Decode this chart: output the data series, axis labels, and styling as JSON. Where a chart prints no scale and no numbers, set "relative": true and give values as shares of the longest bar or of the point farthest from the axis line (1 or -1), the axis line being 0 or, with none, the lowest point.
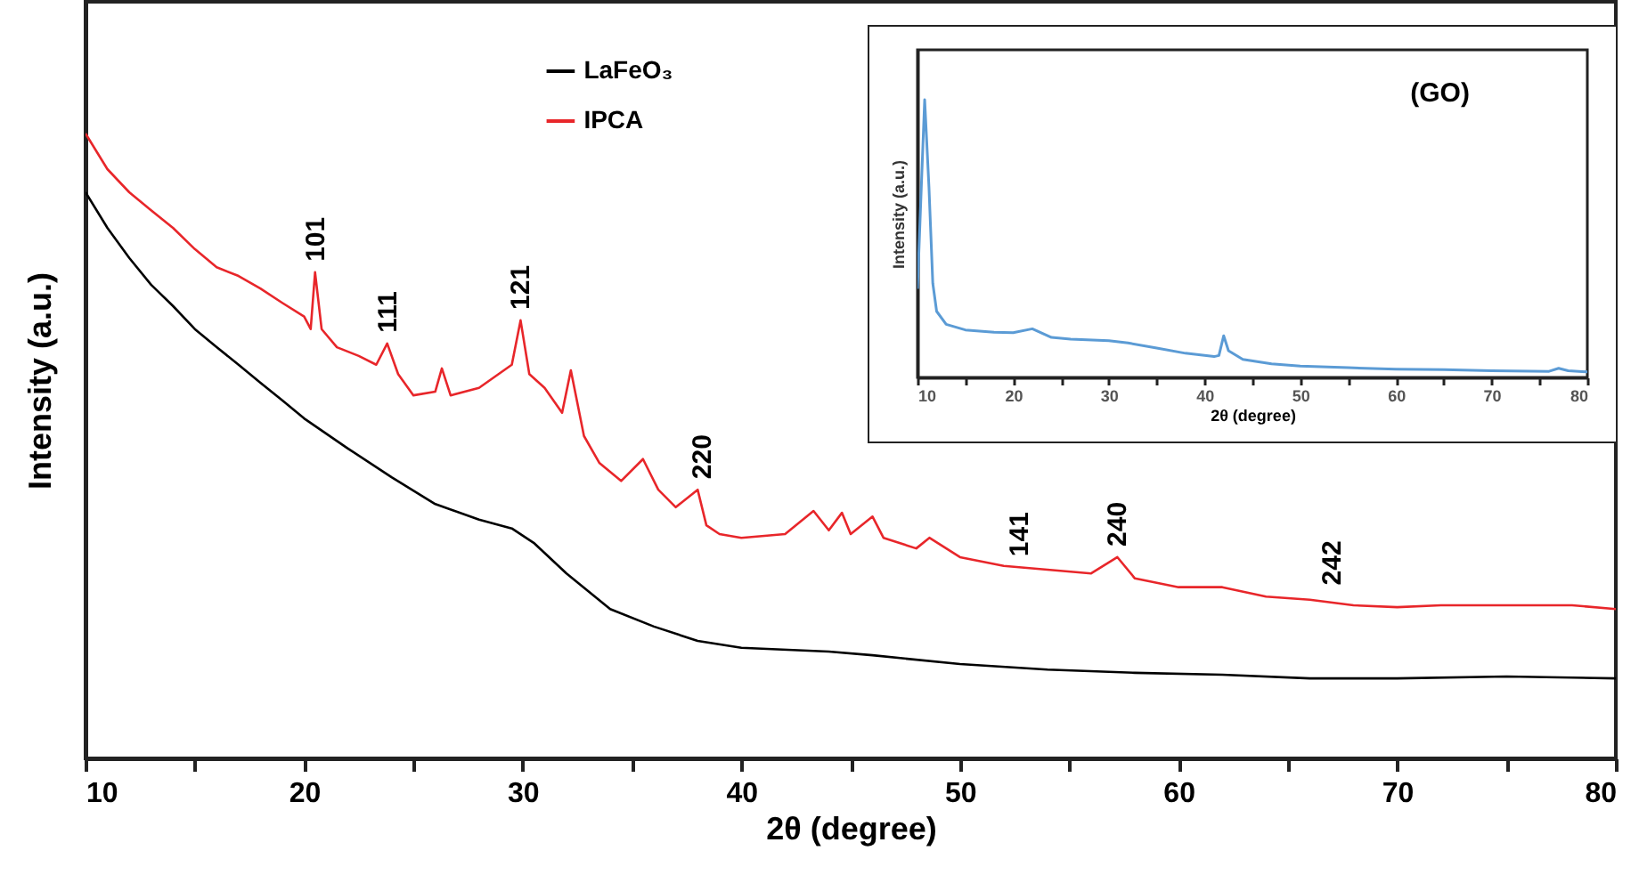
{
  "chart_data": [
    {
      "type": "line",
      "xlabel": "2θ (degree)",
      "ylabel": "Intensity (a.u.)",
      "relative": true,
      "legend": "top",
      "grid": false,
      "xlim": [
        10,
        80
      ],
      "xticks": [
        10,
        {
          "value": 15,
          "label": null
        },
        20,
        {
          "value": 25,
          "label": null
        },
        30,
        {
          "value": 35,
          "label": null
        },
        40,
        {
          "value": 45,
          "label": null
        },
        50,
        {
          "value": 55,
          "label": null
        },
        60,
        {
          "value": 65,
          "label": null
        },
        70,
        {
          "value": 75,
          "label": null
        },
        80
      ],
      "series": [
        {
          "name": "LaFeO₃",
          "color": "#000000",
          "x": [
            10,
            11,
            12,
            13,
            14,
            15,
            16,
            17,
            18,
            19,
            20,
            22,
            24,
            26,
            28,
            29.5,
            30.5,
            32,
            34,
            36,
            38,
            40,
            44,
            46,
            50,
            54,
            58,
            62,
            66,
            70,
            75,
            80
          ],
          "values": [
            0.906,
            0.849,
            0.801,
            0.758,
            0.724,
            0.687,
            0.658,
            0.63,
            0.601,
            0.573,
            0.544,
            0.496,
            0.45,
            0.407,
            0.382,
            0.368,
            0.345,
            0.296,
            0.239,
            0.211,
            0.188,
            0.177,
            0.171,
            0.165,
            0.151,
            0.142,
            0.137,
            0.134,
            0.128,
            0.128,
            0.131,
            0.128
          ]
        },
        {
          "name": "IPCA",
          "color": "#e8262a",
          "x": [
            10,
            11,
            12,
            13,
            14,
            15,
            16,
            17,
            18,
            19,
            20,
            20.3,
            20.5,
            20.8,
            21.5,
            22.5,
            23.3,
            23.8,
            24.3,
            25,
            26,
            26.3,
            26.7,
            28,
            29.5,
            29.9,
            30.3,
            31,
            31.8,
            32.2,
            32.8,
            33.5,
            34.5,
            35.5,
            36.2,
            37,
            38,
            38.4,
            39,
            40,
            42,
            43.3,
            44,
            44.6,
            45,
            46,
            46.5,
            48,
            48.6,
            50,
            52,
            54,
            56,
            57.2,
            58,
            60,
            62,
            64,
            66,
            68,
            70,
            72,
            74,
            76,
            78,
            80
          ],
          "values": [
            1.0,
            0.943,
            0.906,
            0.877,
            0.849,
            0.815,
            0.786,
            0.772,
            0.752,
            0.729,
            0.707,
            0.687,
            0.778,
            0.687,
            0.658,
            0.644,
            0.63,
            0.664,
            0.615,
            0.581,
            0.587,
            0.624,
            0.581,
            0.593,
            0.63,
            0.701,
            0.615,
            0.593,
            0.553,
            0.621,
            0.516,
            0.473,
            0.444,
            0.479,
            0.43,
            0.402,
            0.43,
            0.373,
            0.359,
            0.353,
            0.359,
            0.396,
            0.365,
            0.393,
            0.359,
            0.387,
            0.353,
            0.336,
            0.353,
            0.322,
            0.308,
            0.302,
            0.296,
            0.322,
            0.288,
            0.274,
            0.274,
            0.259,
            0.254,
            0.245,
            0.242,
            0.245,
            0.245,
            0.245,
            0.245,
            0.239
          ]
        }
      ],
      "annotations": [
        {
          "text": "101",
          "x": 20.5,
          "y": 0.778
        },
        {
          "text": "111",
          "x": 23.8,
          "y": 0.664
        },
        {
          "text": "121",
          "x": 29.9,
          "y": 0.701
        },
        {
          "text": "220",
          "x": 38.2,
          "y": 0.43
        },
        {
          "text": "141",
          "x": 52.7,
          "y": 0.306
        },
        {
          "text": "240",
          "x": 57.2,
          "y": 0.322
        },
        {
          "text": "242",
          "x": 67.0,
          "y": 0.26
        }
      ]
    },
    {
      "type": "line",
      "xlabel": "2θ (degree)",
      "ylabel": "Intensity (a.u.)",
      "relative": true,
      "grid": false,
      "xlim": [
        10,
        80
      ],
      "xticks": [
        10,
        {
          "value": 15,
          "label": null
        },
        20,
        {
          "value": 25,
          "label": null
        },
        30,
        {
          "value": 35,
          "label": null
        },
        40,
        {
          "value": 45,
          "label": null
        },
        50,
        {
          "value": 55,
          "label": null
        },
        60,
        {
          "value": 65,
          "label": null
        },
        70,
        {
          "value": 75,
          "label": null
        },
        80
      ],
      "series": [
        {
          "color": "#5b9bd5",
          "x": [
            10,
            10.4,
            10.75,
            11.2,
            11.6,
            12,
            13,
            15,
            18,
            20,
            22,
            24,
            26,
            30,
            32,
            35,
            38,
            41,
            41.5,
            42,
            42.5,
            44,
            47,
            50,
            55,
            60,
            65,
            70,
            76,
            77,
            78,
            80
          ],
          "values": [
            0.319,
            0.685,
            1.0,
            0.685,
            0.339,
            0.238,
            0.191,
            0.171,
            0.163,
            0.161,
            0.175,
            0.144,
            0.138,
            0.132,
            0.124,
            0.106,
            0.087,
            0.075,
            0.079,
            0.15,
            0.096,
            0.065,
            0.049,
            0.041,
            0.035,
            0.03,
            0.028,
            0.024,
            0.022,
            0.033,
            0.024,
            0.02
          ]
        }
      ],
      "annotations": [
        "(GO)"
      ]
    }
  ]
}
